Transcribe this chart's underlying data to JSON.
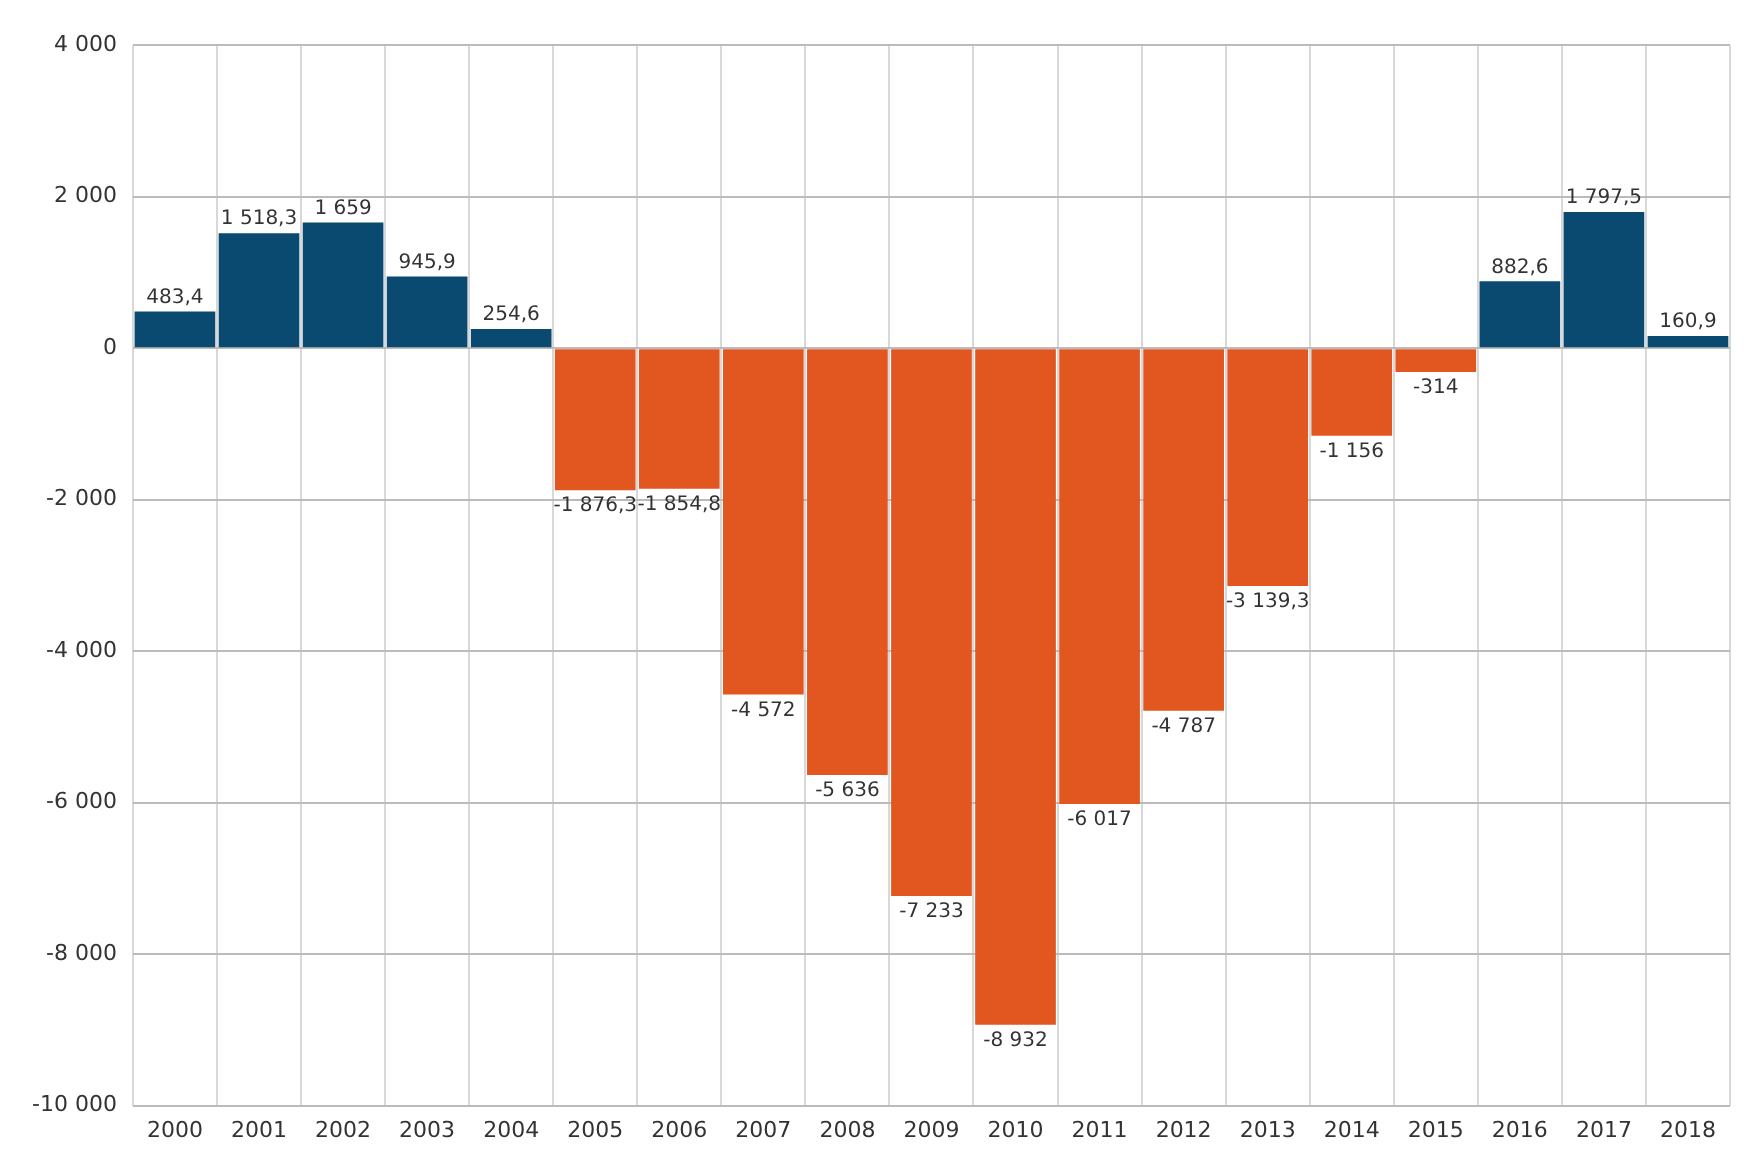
{
  "chart_data": {
    "type": "bar",
    "categories": [
      "2000",
      "2001",
      "2002",
      "2003",
      "2004",
      "2005",
      "2006",
      "2007",
      "2008",
      "2009",
      "2010",
      "2011",
      "2012",
      "2013",
      "2014",
      "2015",
      "2016",
      "2017",
      "2018"
    ],
    "values": [
      483.4,
      1518.3,
      1659,
      945.9,
      254.6,
      -1876.3,
      -1854.8,
      -4572,
      -5636,
      -7233,
      -8932,
      -6017,
      -4787,
      -3139.3,
      -1156,
      -314,
      882.6,
      1797.5,
      160.9
    ],
    "colors": [
      "#0a4a70",
      "#0a4a70",
      "#0a4a70",
      "#0a4a70",
      "#0a4a70",
      "#e2561f",
      "#e2561f",
      "#e2561f",
      "#e2561f",
      "#e2561f",
      "#e2561f",
      "#e2561f",
      "#e2561f",
      "#e2561f",
      "#e2561f",
      "#e2561f",
      "#0a4a70",
      "#0a4a70",
      "#0a4a70"
    ],
    "value_labels": [
      "483,4",
      "1 518,3",
      "1 659",
      "945,9",
      "254,6",
      "-1 876,3",
      "-1 854,8",
      "-4 572",
      "-5 636",
      "-7 233",
      "-8 932",
      "-6 017",
      "-4 787",
      "-3 139,3",
      "-1 156",
      "-314",
      "882,6",
      "1 797,5",
      "160,9"
    ],
    "ylim": [
      -10000,
      4000
    ],
    "yticks": [
      {
        "value": 4000,
        "label": "4 000"
      },
      {
        "value": 2000,
        "label": "2 000"
      },
      0,
      {
        "value": -2000,
        "label": "-2 000"
      },
      {
        "value": -4000,
        "label": "-4 000"
      },
      {
        "value": -6000,
        "label": "-6 000"
      },
      {
        "value": -8000,
        "label": "-8 000"
      },
      {
        "value": -10000,
        "label": "-10 000"
      }
    ],
    "grid": true
  }
}
